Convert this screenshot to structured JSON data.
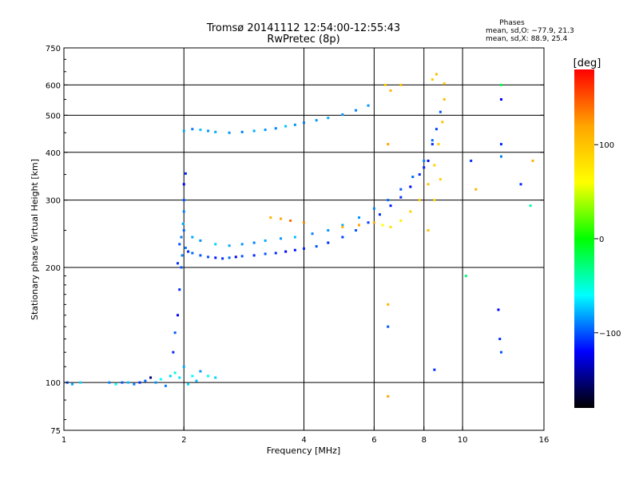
{
  "chart_data": {
    "type": "scatter",
    "title_line1": "Tromsø 20141112 12:54:00-12:55:43",
    "title_line2": "RwPretec (8p)",
    "xlabel": "Frequency [MHz]",
    "ylabel": "Stationary phase Virtual Height [km]",
    "x_scale": "log2",
    "y_scale": "log",
    "xlim": [
      1,
      16
    ],
    "ylim": [
      75,
      750
    ],
    "x_ticks": [
      1,
      2,
      4,
      6,
      8,
      10,
      16
    ],
    "x_tick_labels": [
      "1",
      "2",
      "4",
      "6",
      "8",
      "10",
      "16"
    ],
    "y_ticks": [
      75,
      100,
      200,
      300,
      400,
      500,
      600,
      750
    ],
    "y_tick_labels": [
      "75",
      "100",
      "200",
      "300",
      "400",
      "500",
      "600",
      "750"
    ],
    "grid": true,
    "grid_x": [
      2,
      4,
      6,
      8,
      10
    ],
    "grid_y": [
      100,
      200,
      300,
      400,
      500,
      600
    ],
    "phase_stats": {
      "heading": "Phases",
      "line_o": "mean, sd,O: −77.9, 21.3",
      "line_x": "mean, sd,X:  88.9, 25.4"
    },
    "colorbar": {
      "unit_label": "[deg]",
      "range": [
        -180,
        180
      ],
      "ticks": [
        100,
        0,
        -100
      ],
      "tick_labels": [
        "100",
        "0",
        "−100"
      ],
      "colors": [
        "#ff0000",
        "#ffa500",
        "#ffff00",
        "#00ff00",
        "#00ffff",
        "#0000ff",
        "#000000"
      ]
    },
    "series": [
      {
        "points": [
          [
            1.02,
            100,
            -100
          ],
          [
            1.05,
            99,
            -80
          ],
          [
            1.1,
            100,
            -70
          ],
          [
            1.3,
            100,
            -90
          ],
          [
            1.35,
            99,
            -60
          ],
          [
            1.4,
            100,
            -100
          ],
          [
            1.45,
            100,
            -75
          ],
          [
            1.5,
            99,
            -90
          ],
          [
            1.55,
            100,
            -110
          ],
          [
            1.6,
            101,
            -95
          ],
          [
            1.65,
            103,
            -150
          ],
          [
            1.7,
            100,
            -85
          ],
          [
            1.75,
            102,
            -60
          ],
          [
            1.8,
            98,
            -90
          ],
          [
            1.85,
            104,
            -70
          ],
          [
            1.9,
            106,
            -50
          ],
          [
            1.95,
            103,
            -65
          ],
          [
            2.0,
            110,
            -80
          ],
          [
            2.05,
            99,
            -70
          ],
          [
            2.1,
            104,
            -60
          ],
          [
            2.15,
            101,
            -75
          ],
          [
            2.2,
            107,
            -85
          ],
          [
            2.3,
            104,
            -55
          ],
          [
            2.4,
            103,
            -70
          ],
          [
            1.88,
            120,
            -110
          ],
          [
            1.9,
            135,
            -100
          ],
          [
            1.93,
            150,
            -120
          ],
          [
            1.95,
            175,
            -110
          ],
          [
            1.97,
            200,
            -100
          ],
          [
            1.98,
            215,
            -90
          ],
          [
            1.93,
            205,
            -110
          ],
          [
            1.97,
            240,
            -90
          ],
          [
            1.99,
            260,
            -80
          ],
          [
            2.0,
            280,
            -90
          ],
          [
            2.0,
            300,
            -100
          ],
          [
            2.0,
            330,
            -120
          ],
          [
            2.02,
            352,
            -110
          ],
          [
            1.95,
            230,
            -100
          ],
          [
            2.0,
            250,
            -95
          ],
          [
            2.02,
            225,
            -90
          ],
          [
            2.05,
            220,
            -110
          ],
          [
            2.1,
            218,
            -95
          ],
          [
            2.2,
            215,
            -100
          ],
          [
            2.3,
            213,
            -100
          ],
          [
            2.4,
            212,
            -115
          ],
          [
            2.5,
            211,
            -110
          ],
          [
            2.6,
            212,
            -95
          ],
          [
            2.7,
            213,
            -120
          ],
          [
            2.8,
            214,
            -100
          ],
          [
            3.0,
            215,
            -110
          ],
          [
            3.2,
            217,
            -100
          ],
          [
            3.4,
            218,
            -110
          ],
          [
            3.6,
            220,
            -120
          ],
          [
            3.8,
            222,
            -115
          ],
          [
            4.0,
            224,
            -110
          ],
          [
            4.3,
            227,
            -100
          ],
          [
            4.6,
            232,
            -110
          ],
          [
            5.0,
            240,
            -105
          ],
          [
            5.4,
            250,
            -100
          ],
          [
            5.8,
            262,
            -105
          ],
          [
            6.2,
            275,
            -110
          ],
          [
            6.6,
            290,
            -115
          ],
          [
            7.0,
            305,
            -110
          ],
          [
            7.4,
            325,
            -120
          ],
          [
            7.8,
            350,
            -110
          ],
          [
            8.0,
            365,
            -115
          ],
          [
            8.2,
            380,
            -120
          ],
          [
            8.4,
            420,
            -110
          ],
          [
            8.6,
            460,
            -105
          ],
          [
            8.8,
            510,
            -100
          ],
          [
            2.1,
            240,
            -80
          ],
          [
            2.2,
            235,
            -85
          ],
          [
            2.4,
            230,
            -70
          ],
          [
            2.6,
            228,
            -80
          ],
          [
            2.8,
            230,
            -85
          ],
          [
            3.0,
            232,
            -90
          ],
          [
            3.2,
            235,
            -80
          ],
          [
            3.5,
            238,
            -85
          ],
          [
            3.8,
            240,
            -75
          ],
          [
            4.2,
            245,
            -90
          ],
          [
            4.6,
            250,
            -85
          ],
          [
            5.0,
            258,
            -80
          ],
          [
            5.5,
            270,
            -85
          ],
          [
            6.0,
            285,
            -90
          ],
          [
            6.5,
            300,
            -95
          ],
          [
            7.0,
            320,
            -100
          ],
          [
            7.5,
            345,
            -95
          ],
          [
            8.0,
            380,
            -90
          ],
          [
            8.4,
            430,
            -95
          ],
          [
            2.0,
            455,
            -80
          ],
          [
            2.1,
            460,
            -90
          ],
          [
            2.2,
            458,
            -75
          ],
          [
            2.3,
            455,
            -85
          ],
          [
            2.4,
            452,
            -80
          ],
          [
            2.6,
            450,
            -85
          ],
          [
            2.8,
            452,
            -90
          ],
          [
            3.0,
            455,
            -80
          ],
          [
            3.2,
            458,
            -85
          ],
          [
            3.4,
            462,
            -90
          ],
          [
            3.6,
            468,
            -75
          ],
          [
            3.8,
            472,
            -85
          ],
          [
            4.0,
            478,
            -90
          ],
          [
            4.3,
            485,
            -85
          ],
          [
            4.6,
            492,
            -80
          ],
          [
            5.0,
            502,
            -85
          ],
          [
            5.4,
            515,
            -90
          ],
          [
            5.8,
            530,
            -85
          ],
          [
            3.3,
            270,
            110
          ],
          [
            3.5,
            268,
            120
          ],
          [
            3.7,
            265,
            140
          ],
          [
            4.0,
            262,
            130
          ],
          [
            5.0,
            255,
            110
          ],
          [
            5.5,
            258,
            120
          ],
          [
            6.0,
            262,
            115
          ],
          [
            6.3,
            258,
            60
          ],
          [
            6.6,
            255,
            80
          ],
          [
            7.0,
            265,
            70
          ],
          [
            7.4,
            280,
            90
          ],
          [
            7.8,
            300,
            95
          ],
          [
            8.2,
            330,
            100
          ],
          [
            8.5,
            370,
            90
          ],
          [
            8.7,
            420,
            95
          ],
          [
            8.9,
            480,
            100
          ],
          [
            9.0,
            550,
            105
          ],
          [
            8.5,
            300,
            85
          ],
          [
            8.8,
            340,
            90
          ],
          [
            6.4,
            600,
            90
          ],
          [
            6.6,
            580,
            110
          ],
          [
            7.0,
            600,
            100
          ],
          [
            8.4,
            620,
            95
          ],
          [
            8.6,
            640,
            105
          ],
          [
            9.0,
            605,
            100
          ],
          [
            6.5,
            420,
            120
          ],
          [
            6.5,
            160,
            110
          ],
          [
            6.5,
            92,
            120
          ],
          [
            6.5,
            140,
            -100
          ],
          [
            8.2,
            250,
            100
          ],
          [
            8.5,
            108,
            -110
          ],
          [
            10.2,
            190,
            -30
          ],
          [
            10.5,
            380,
            -110
          ],
          [
            10.8,
            320,
            110
          ],
          [
            12.5,
            600,
            -20
          ],
          [
            12.5,
            550,
            -120
          ],
          [
            12.5,
            420,
            -110
          ],
          [
            12.5,
            390,
            -90
          ],
          [
            12.3,
            155,
            -120
          ],
          [
            12.4,
            130,
            -110
          ],
          [
            12.5,
            120,
            -100
          ],
          [
            14.0,
            330,
            -110
          ],
          [
            14.8,
            290,
            -40
          ],
          [
            15.0,
            380,
            110
          ]
        ]
      }
    ]
  }
}
